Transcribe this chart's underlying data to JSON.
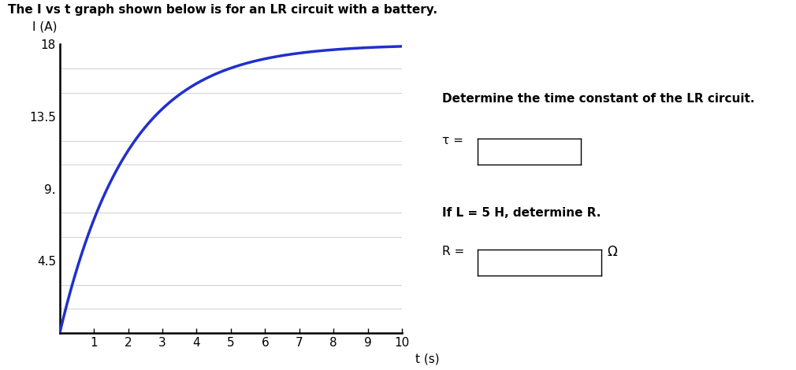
{
  "title": "The I vs t graph shown below is for an LR circuit with a battery.",
  "ylabel": "I (A)",
  "xlabel": "t (s)",
  "I_max": 18.0,
  "tau": 2.0,
  "t_min": 0,
  "t_max": 10,
  "yticks": [
    4.5,
    9.0,
    13.5,
    18
  ],
  "ytick_labels": [
    "4.5",
    "9.",
    "13.5",
    "18"
  ],
  "xticks": [
    1,
    2,
    3,
    4,
    5,
    6,
    7,
    8,
    9,
    10
  ],
  "curve_color": "#2030cc",
  "curve_linewidth": 2.5,
  "grid_color": "#c8c8c8",
  "grid_minor_color": "#dedede",
  "background_color": "#ffffff",
  "right_panel_title": "Determine the time constant of the LR circuit.",
  "tau_label": "τ = ",
  "L_R_title": "If L = 5 H, determine R.",
  "R_label": "R = ",
  "omega": "Ω"
}
